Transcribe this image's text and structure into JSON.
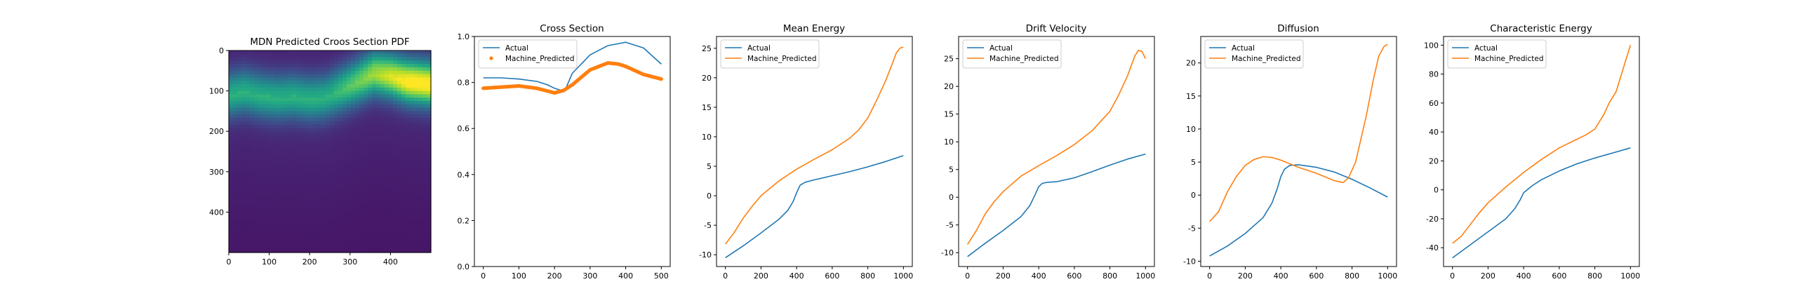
{
  "figure": {
    "panels": [
      {
        "title": "MDN Predicted Croos Section PDF"
      },
      {
        "title": "Cross Section"
      },
      {
        "title": "Mean Energy"
      },
      {
        "title": "Drift Velocity"
      },
      {
        "title": "Diffusion"
      },
      {
        "title": "Characteristic Energy"
      }
    ]
  },
  "colors": {
    "actual": "#1f77b4",
    "predicted": "#ff7f0e"
  },
  "chart_data": [
    {
      "type": "heatmap",
      "title": "MDN Predicted Croos Section PDF",
      "colormap": "viridis",
      "xlim": [
        0,
        500
      ],
      "ylim": [
        500,
        0
      ],
      "xticks": [
        0,
        100,
        200,
        300,
        400
      ],
      "yticks": [
        0,
        100,
        200,
        300,
        400
      ],
      "peak_row_by_column": {
        "x": [
          0,
          40,
          80,
          120,
          160,
          200,
          240,
          280,
          320,
          360,
          400,
          440,
          480,
          500
        ],
        "y": [
          108,
          100,
          110,
          115,
          112,
          118,
          114,
          95,
          75,
          55,
          62,
          75,
          80,
          82
        ]
      }
    },
    {
      "type": "line",
      "title": "Cross Section",
      "xlim": [
        -25,
        525
      ],
      "ylim": [
        0.0,
        1.0
      ],
      "xticks": [
        0,
        100,
        200,
        300,
        400,
        500
      ],
      "yticks": [
        0.0,
        0.2,
        0.4,
        0.6,
        0.8,
        1.0
      ],
      "legend": "upper-left",
      "series": [
        {
          "name": "Actual",
          "style": "line",
          "x": [
            0,
            50,
            100,
            150,
            180,
            200,
            220,
            228,
            250,
            300,
            350,
            400,
            450,
            500
          ],
          "y": [
            0.82,
            0.82,
            0.815,
            0.805,
            0.79,
            0.775,
            0.765,
            0.76,
            0.84,
            0.92,
            0.96,
            0.975,
            0.95,
            0.88
          ]
        },
        {
          "name": "Machine_Predicted",
          "style": "markers",
          "x": [
            0,
            50,
            100,
            150,
            200,
            225,
            250,
            300,
            350,
            380,
            400,
            450,
            500
          ],
          "y": [
            0.775,
            0.78,
            0.785,
            0.775,
            0.755,
            0.765,
            0.79,
            0.855,
            0.885,
            0.88,
            0.87,
            0.835,
            0.815
          ]
        }
      ]
    },
    {
      "type": "line",
      "title": "Mean Energy",
      "xlim": [
        -50,
        1050
      ],
      "ylim": [
        -12,
        27
      ],
      "xticks": [
        0,
        200,
        400,
        600,
        800,
        1000
      ],
      "yticks": [
        -10,
        -5,
        0,
        5,
        10,
        15,
        20,
        25
      ],
      "legend": "upper-left",
      "series": [
        {
          "name": "Actual",
          "x": [
            0,
            100,
            200,
            300,
            350,
            380,
            400,
            420,
            450,
            500,
            600,
            700,
            800,
            900,
            1000
          ],
          "y": [
            -10.5,
            -8.5,
            -6.3,
            -4,
            -2.5,
            -1,
            0.5,
            1.8,
            2.3,
            2.7,
            3.4,
            4.1,
            4.9,
            5.8,
            6.8
          ]
        },
        {
          "name": "Machine_Predicted",
          "x": [
            0,
            50,
            100,
            150,
            200,
            300,
            400,
            500,
            600,
            700,
            750,
            800,
            850,
            900,
            930,
            960,
            980,
            1000
          ],
          "y": [
            -8.2,
            -6.2,
            -3.8,
            -1.8,
            0,
            2.5,
            4.5,
            6.2,
            7.8,
            9.8,
            11.2,
            13.2,
            16.2,
            19.5,
            21.8,
            24.2,
            25,
            25.2
          ]
        }
      ]
    },
    {
      "type": "line",
      "title": "Drift Velocity",
      "xlim": [
        -50,
        1050
      ],
      "ylim": [
        -12.5,
        29
      ],
      "xticks": [
        0,
        200,
        400,
        600,
        800,
        1000
      ],
      "yticks": [
        -10,
        -5,
        0,
        5,
        10,
        15,
        20,
        25
      ],
      "legend": "upper-left",
      "series": [
        {
          "name": "Actual",
          "x": [
            0,
            100,
            200,
            300,
            350,
            380,
            400,
            420,
            450,
            500,
            600,
            700,
            800,
            900,
            1000
          ],
          "y": [
            -10.7,
            -8.3,
            -6,
            -3.5,
            -1.5,
            0.5,
            1.9,
            2.5,
            2.7,
            2.8,
            3.5,
            4.6,
            5.8,
            6.9,
            7.8
          ]
        },
        {
          "name": "Machine_Predicted",
          "x": [
            0,
            50,
            100,
            150,
            200,
            300,
            400,
            500,
            600,
            700,
            800,
            850,
            900,
            940,
            960,
            980,
            1000
          ],
          "y": [
            -8.5,
            -6,
            -3,
            -0.8,
            1,
            3.8,
            5.7,
            7.5,
            9.5,
            12,
            15.5,
            18.5,
            22,
            25.5,
            26.5,
            26.3,
            25
          ]
        }
      ]
    },
    {
      "type": "line",
      "title": "Diffusion",
      "xlim": [
        -50,
        1050
      ],
      "ylim": [
        -10.8,
        24
      ],
      "xticks": [
        0,
        200,
        400,
        600,
        800,
        1000
      ],
      "yticks": [
        -10,
        -5,
        0,
        5,
        10,
        15,
        20
      ],
      "legend": "upper-left",
      "series": [
        {
          "name": "Actual",
          "x": [
            0,
            100,
            200,
            300,
            350,
            380,
            400,
            420,
            450,
            500,
            600,
            700,
            800,
            900,
            1000
          ],
          "y": [
            -9.2,
            -7.7,
            -5.8,
            -3.4,
            -1.2,
            1,
            2.8,
            3.9,
            4.5,
            4.6,
            4.2,
            3.5,
            2.4,
            1.1,
            -0.3
          ]
        },
        {
          "name": "Machine_Predicted",
          "x": [
            0,
            50,
            100,
            150,
            200,
            250,
            300,
            350,
            400,
            500,
            600,
            700,
            750,
            780,
            820,
            850,
            880,
            920,
            950,
            980,
            1000
          ],
          "y": [
            -4,
            -2.5,
            0.5,
            2.8,
            4.5,
            5.4,
            5.8,
            5.7,
            5.3,
            4.2,
            3.3,
            2.2,
            1.9,
            2.6,
            5,
            8.5,
            12,
            17.5,
            21,
            22.5,
            22.8
          ]
        }
      ]
    },
    {
      "type": "line",
      "title": "Characteristic Energy",
      "xlim": [
        -50,
        1050
      ],
      "ylim": [
        -53,
        106
      ],
      "xticks": [
        0,
        200,
        400,
        600,
        800,
        1000
      ],
      "yticks": [
        -40,
        -20,
        0,
        20,
        40,
        60,
        80,
        100
      ],
      "legend": "upper-left",
      "series": [
        {
          "name": "Actual",
          "x": [
            0,
            100,
            200,
            300,
            350,
            380,
            400,
            450,
            500,
            600,
            700,
            800,
            900,
            1000
          ],
          "y": [
            -47,
            -38,
            -29,
            -20,
            -13,
            -7,
            -2,
            3,
            7,
            13,
            18,
            22,
            25.5,
            29
          ]
        },
        {
          "name": "Machine_Predicted",
          "x": [
            0,
            50,
            100,
            150,
            200,
            300,
            400,
            500,
            600,
            700,
            750,
            800,
            850,
            880,
            920,
            950,
            980,
            1000
          ],
          "y": [
            -37,
            -32,
            -24,
            -16,
            -9,
            2,
            12,
            21,
            29,
            35,
            38,
            42,
            52,
            60,
            68,
            80,
            92,
            100
          ]
        }
      ]
    }
  ]
}
